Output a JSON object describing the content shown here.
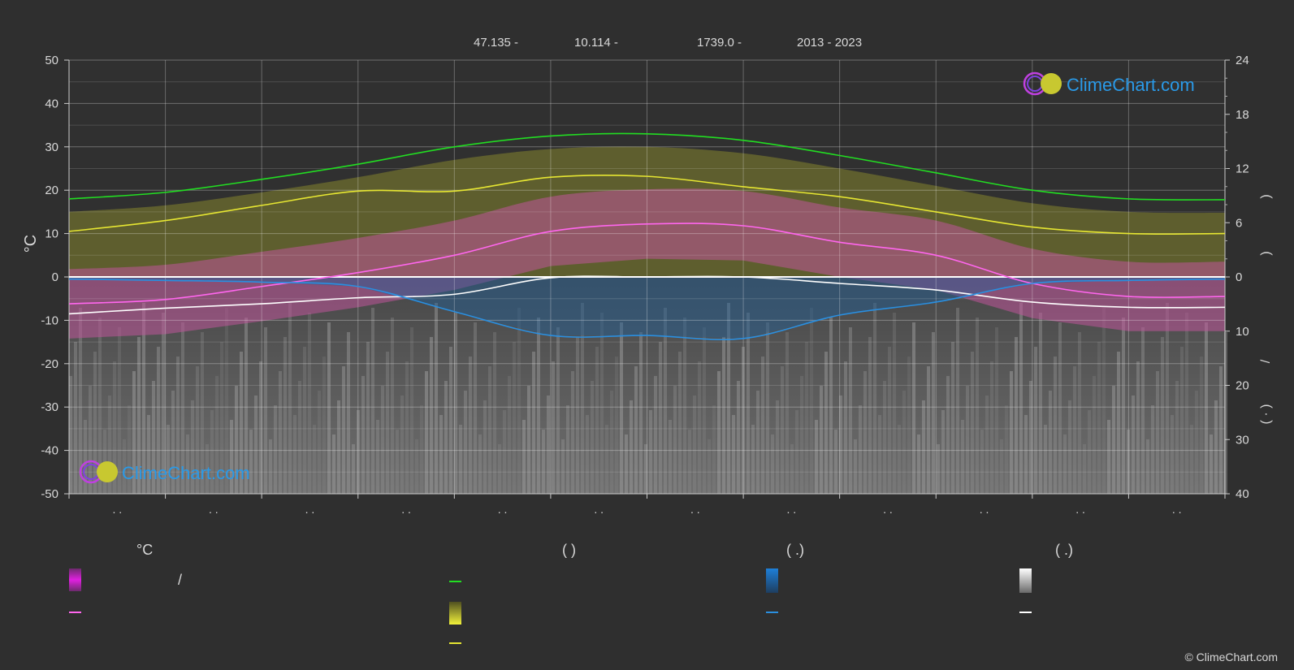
{
  "header": {
    "lat": "47.135 -",
    "lon": "10.114 -",
    "elev": "1739.0 -",
    "years": "2013 - 2023"
  },
  "brand": {
    "name": "ClimeChart.com",
    "copyright": "© ClimeChart.com"
  },
  "chart_data": {
    "type": "line",
    "ylabel_left": "°C",
    "y_left_ticks": [
      50,
      40,
      30,
      20,
      10,
      0,
      -10,
      -20,
      -30,
      -40,
      -50
    ],
    "ylim_left": [
      -50,
      50
    ],
    "y_right_top_ticks": [
      24,
      18,
      12,
      6,
      0
    ],
    "y_right_bottom_ticks": [
      10,
      20,
      30,
      40
    ],
    "right_label_glyphs": [
      ")",
      ")",
      "/",
      "( · )"
    ],
    "x_tick_labels": [
      ". .",
      ". .",
      ". .",
      ". .",
      ". .",
      ". .",
      ". .",
      ". .",
      ". .",
      ". .",
      ". .",
      ". ."
    ],
    "grid": true,
    "series": [
      {
        "key": "daylight",
        "color": "#22dd22",
        "values": [
          18.0,
          19.5,
          22.5,
          26.0,
          30.0,
          32.5,
          33.0,
          31.5,
          28.0,
          24.0,
          20.0,
          18.0,
          17.8
        ]
      },
      {
        "key": "sunshine",
        "color": "#e6e632",
        "values": [
          10.5,
          13.0,
          16.5,
          19.8,
          19.8,
          23.0,
          23.2,
          20.8,
          18.5,
          15.0,
          11.5,
          10.0,
          10.0
        ]
      },
      {
        "key": "temp_mean",
        "color": "#ff66ee",
        "values": [
          -6.2,
          -5.2,
          -2.2,
          1.0,
          5.0,
          10.5,
          12.2,
          11.8,
          8.0,
          5.0,
          -1.5,
          -4.5,
          -4.5
        ]
      },
      {
        "key": "snow",
        "color": "#ffffff",
        "values": [
          -8.5,
          -7.2,
          -6.2,
          -4.8,
          -4.0,
          -0.2,
          0.0,
          0.0,
          -1.5,
          -3.0,
          -5.8,
          -7.0,
          -7.0
        ]
      },
      {
        "key": "rain",
        "color": "#2a8fe0",
        "values": [
          -0.5,
          -0.8,
          -1.2,
          -2.2,
          -8.0,
          -13.5,
          -13.5,
          -14.2,
          -8.8,
          -5.8,
          -1.5,
          -0.8,
          -0.5
        ]
      }
    ]
  },
  "legend": {
    "col1_title": "°C",
    "col1_slash": "/",
    "col2_title": "(          )",
    "col3_title": "(   .)",
    "col4_title": "(   .)",
    "colors": {
      "temp_range": "#e020e0",
      "temp_mean": "#ff66ee",
      "daylight": "#22dd22",
      "sunshine_band": "#e6e632",
      "sunshine": "#e6e632",
      "rain_band": "#1e7fd8",
      "rain": "#2a8fe0",
      "snow_band": "#e8e8e8",
      "snow": "#ffffff"
    }
  }
}
